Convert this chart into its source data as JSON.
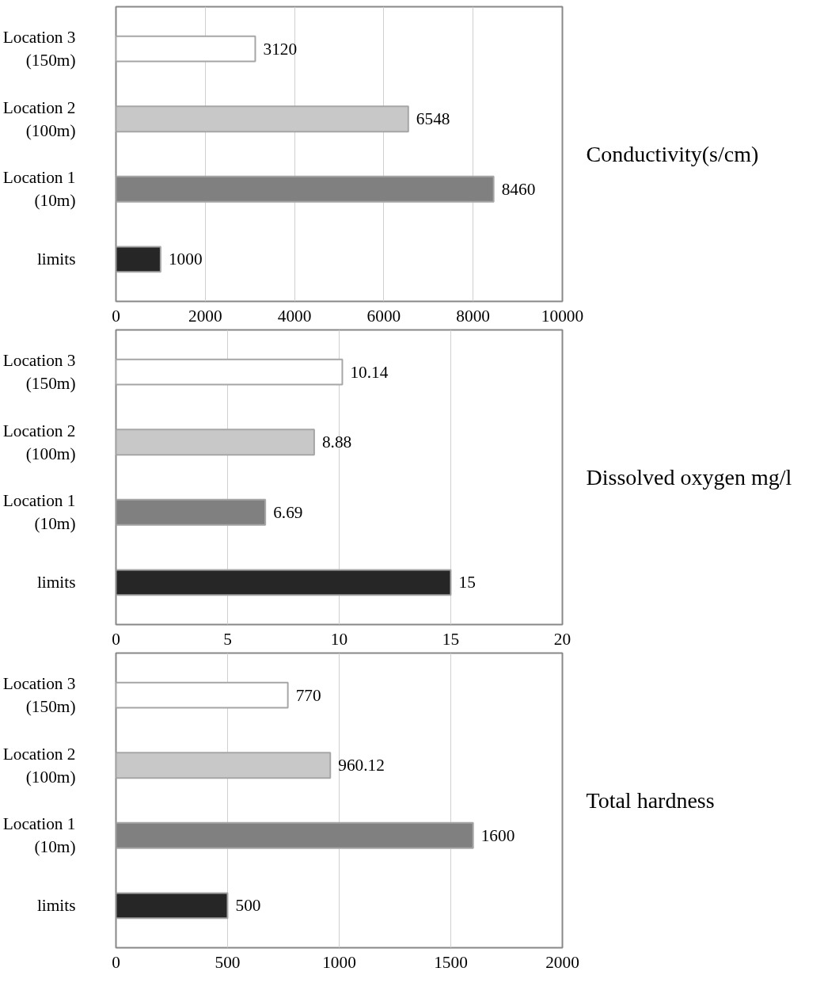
{
  "chart_data": [
    {
      "type": "bar",
      "orientation": "horizontal",
      "y2label": "Conductivity(s/cm)",
      "categories": [
        "Location 3\n(150m)",
        "Location 2\n(100m)",
        "Location 1\n(10m)",
        "limits"
      ],
      "values": [
        3120,
        6548,
        8460,
        1000
      ],
      "colors": [
        "#ffffff",
        "#c8c8c8",
        "#808080",
        "#262626"
      ],
      "xlim": [
        0,
        10000
      ],
      "xticks": [
        0,
        2000,
        4000,
        6000,
        8000,
        10000
      ],
      "grid": "x",
      "data_labels": true
    },
    {
      "type": "bar",
      "orientation": "horizontal",
      "y2label": "Dissolved oxygen mg/l",
      "categories": [
        "Location 3\n(150m)",
        "Location 2\n(100m)",
        "Location 1\n(10m)",
        "limits"
      ],
      "values": [
        10.14,
        8.88,
        6.69,
        15
      ],
      "colors": [
        "#ffffff",
        "#c8c8c8",
        "#808080",
        "#262626"
      ],
      "xlim": [
        0,
        20
      ],
      "xticks": [
        0,
        5,
        10,
        15,
        20
      ],
      "grid": "x",
      "data_labels": true
    },
    {
      "type": "bar",
      "orientation": "horizontal",
      "y2label": "Total hardness",
      "categories": [
        "Location 3\n(150m)",
        "Location 2\n(100m)",
        "Location 1\n(10m)",
        "limits"
      ],
      "values": [
        770,
        960.12,
        1600,
        500
      ],
      "colors": [
        "#ffffff",
        "#c8c8c8",
        "#808080",
        "#262626"
      ],
      "xlim": [
        0,
        2000
      ],
      "xticks": [
        0,
        500,
        1000,
        1500,
        2000
      ],
      "grid": "x",
      "data_labels": true
    }
  ]
}
